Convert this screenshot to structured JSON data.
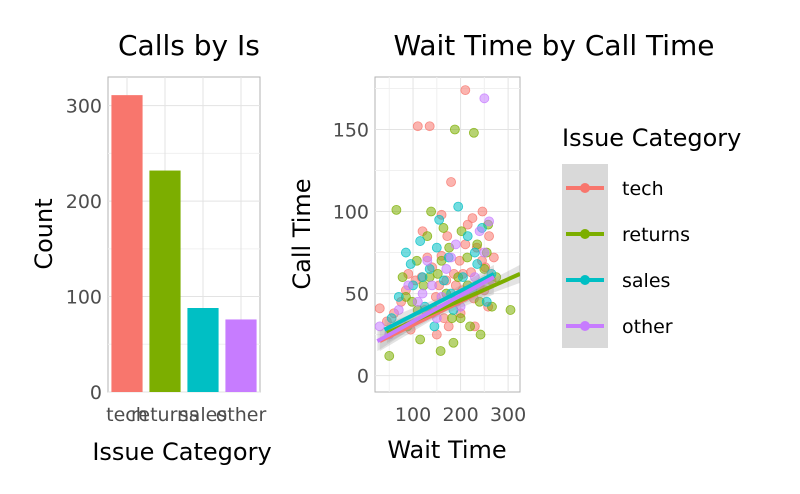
{
  "chart_data": [
    {
      "type": "bar",
      "title": "Calls by Is",
      "xlabel": "Issue Category",
      "ylabel": "Count",
      "categories": [
        "tech",
        "returns",
        "sales",
        "other"
      ],
      "values": [
        311,
        232,
        88,
        76
      ],
      "colors": [
        "#F8766D",
        "#7CAE00",
        "#00BFC4",
        "#C77CFF"
      ],
      "ylim": [
        0,
        330
      ],
      "yticks": [
        0,
        100,
        200,
        300
      ],
      "grid": true
    },
    {
      "type": "scatter",
      "title": "Wait Time by Call Time",
      "xlabel": "Wait Time",
      "ylabel": "Call Time",
      "xlim": [
        20,
        325
      ],
      "ylim": [
        -10,
        182
      ],
      "xticks": [
        100,
        200,
        300
      ],
      "yticks": [
        0,
        50,
        100,
        150
      ],
      "grid": true,
      "legend": {
        "title": "Issue Category",
        "position": "right",
        "entries": [
          "tech",
          "returns",
          "sales",
          "other"
        ]
      },
      "series": [
        {
          "name": "tech",
          "color": "#F8766D",
          "trend": [
            [
              30,
              21
            ],
            [
              270,
              55
            ]
          ],
          "points": [
            [
              30,
              41
            ],
            [
              45,
              33
            ],
            [
              60,
              38
            ],
            [
              75,
              45
            ],
            [
              85,
              52
            ],
            [
              95,
              28
            ],
            [
              105,
              58
            ],
            [
              110,
              152
            ],
            [
              118,
              60
            ],
            [
              125,
              40
            ],
            [
              135,
              152
            ],
            [
              140,
              66
            ],
            [
              148,
              48
            ],
            [
              155,
              55
            ],
            [
              160,
              73
            ],
            [
              165,
              35
            ],
            [
              172,
              85
            ],
            [
              180,
              118
            ],
            [
              186,
              62
            ],
            [
              192,
              45
            ],
            [
              198,
              70
            ],
            [
              204,
              52
            ],
            [
              210,
              174
            ],
            [
              215,
              92
            ],
            [
              222,
              63
            ],
            [
              228,
              47
            ],
            [
              234,
              78
            ],
            [
              240,
              55
            ],
            [
              246,
              100
            ],
            [
              252,
              66
            ],
            [
              258,
              42
            ],
            [
              265,
              58
            ],
            [
              270,
              72
            ],
            [
              150,
              25
            ],
            [
              175,
              30
            ],
            [
              200,
              38
            ],
            [
              230,
              30
            ],
            [
              120,
              88
            ],
            [
              160,
              98
            ],
            [
              190,
              55
            ],
            [
              210,
              80
            ],
            [
              245,
              70
            ],
            [
              260,
              85
            ],
            [
              90,
              62
            ],
            [
              130,
              72
            ],
            [
              170,
              58
            ],
            [
              205,
              62
            ],
            [
              225,
              96
            ],
            [
              250,
              52
            ],
            [
              140,
              38
            ]
          ]
        },
        {
          "name": "returns",
          "color": "#7CAE00",
          "trend": [
            [
              45,
              26
            ],
            [
              325,
              62
            ]
          ],
          "points": [
            [
              50,
              12
            ],
            [
              65,
              101
            ],
            [
              78,
              60
            ],
            [
              88,
              30
            ],
            [
              98,
              45
            ],
            [
              108,
              70
            ],
            [
              115,
              22
            ],
            [
              122,
              55
            ],
            [
              130,
              85
            ],
            [
              138,
              100
            ],
            [
              145,
              40
            ],
            [
              152,
              62
            ],
            [
              158,
              15
            ],
            [
              164,
              90
            ],
            [
              170,
              50
            ],
            [
              176,
              78
            ],
            [
              182,
              35
            ],
            [
              188,
              150
            ],
            [
              195,
              60
            ],
            [
              202,
              88
            ],
            [
              208,
              48
            ],
            [
              214,
              72
            ],
            [
              220,
              30
            ],
            [
              228,
              148
            ],
            [
              235,
              80
            ],
            [
              242,
              25
            ],
            [
              250,
              65
            ],
            [
              258,
              92
            ],
            [
              266,
              42
            ],
            [
              275,
              60
            ],
            [
              305,
              40
            ],
            [
              85,
              48
            ],
            [
              110,
              40
            ],
            [
              135,
              60
            ],
            [
              160,
              70
            ],
            [
              185,
              20
            ],
            [
              200,
              35
            ],
            [
              215,
              55
            ],
            [
              240,
              45
            ],
            [
              255,
              75
            ]
          ]
        },
        {
          "name": "sales",
          "color": "#00BFC4",
          "trend": [
            [
              40,
              28
            ],
            [
              270,
              62
            ]
          ],
          "points": [
            [
              55,
              35
            ],
            [
              70,
              48
            ],
            [
              85,
              75
            ],
            [
              100,
              55
            ],
            [
              115,
              82
            ],
            [
              125,
              42
            ],
            [
              135,
              65
            ],
            [
              145,
              30
            ],
            [
              155,
              95
            ],
            [
              165,
              58
            ],
            [
              175,
              72
            ],
            [
              185,
              40
            ],
            [
              195,
              103
            ],
            [
              205,
              60
            ],
            [
              215,
              85
            ],
            [
              225,
              52
            ],
            [
              235,
              68
            ],
            [
              245,
              90
            ],
            [
              255,
              45
            ],
            [
              265,
              62
            ],
            [
              120,
              60
            ],
            [
              180,
              50
            ],
            [
              230,
              75
            ],
            [
              95,
              68
            ],
            [
              150,
              78
            ]
          ]
        },
        {
          "name": "other",
          "color": "#C77CFF",
          "trend": [
            [
              25,
              21
            ],
            [
              270,
              60
            ]
          ],
          "points": [
            [
              30,
              30
            ],
            [
              50,
              25
            ],
            [
              70,
              40
            ],
            [
              90,
              55
            ],
            [
              110,
              45
            ],
            [
              130,
              70
            ],
            [
              150,
              35
            ],
            [
              170,
              65
            ],
            [
              190,
              80
            ],
            [
              210,
              50
            ],
            [
              230,
              60
            ],
            [
              250,
              75
            ],
            [
              260,
              94
            ],
            [
              250,
              169
            ],
            [
              140,
              55
            ],
            [
              200,
              42
            ],
            [
              240,
              88
            ],
            [
              120,
              50
            ],
            [
              180,
              72
            ],
            [
              160,
              48
            ]
          ]
        }
      ]
    }
  ]
}
